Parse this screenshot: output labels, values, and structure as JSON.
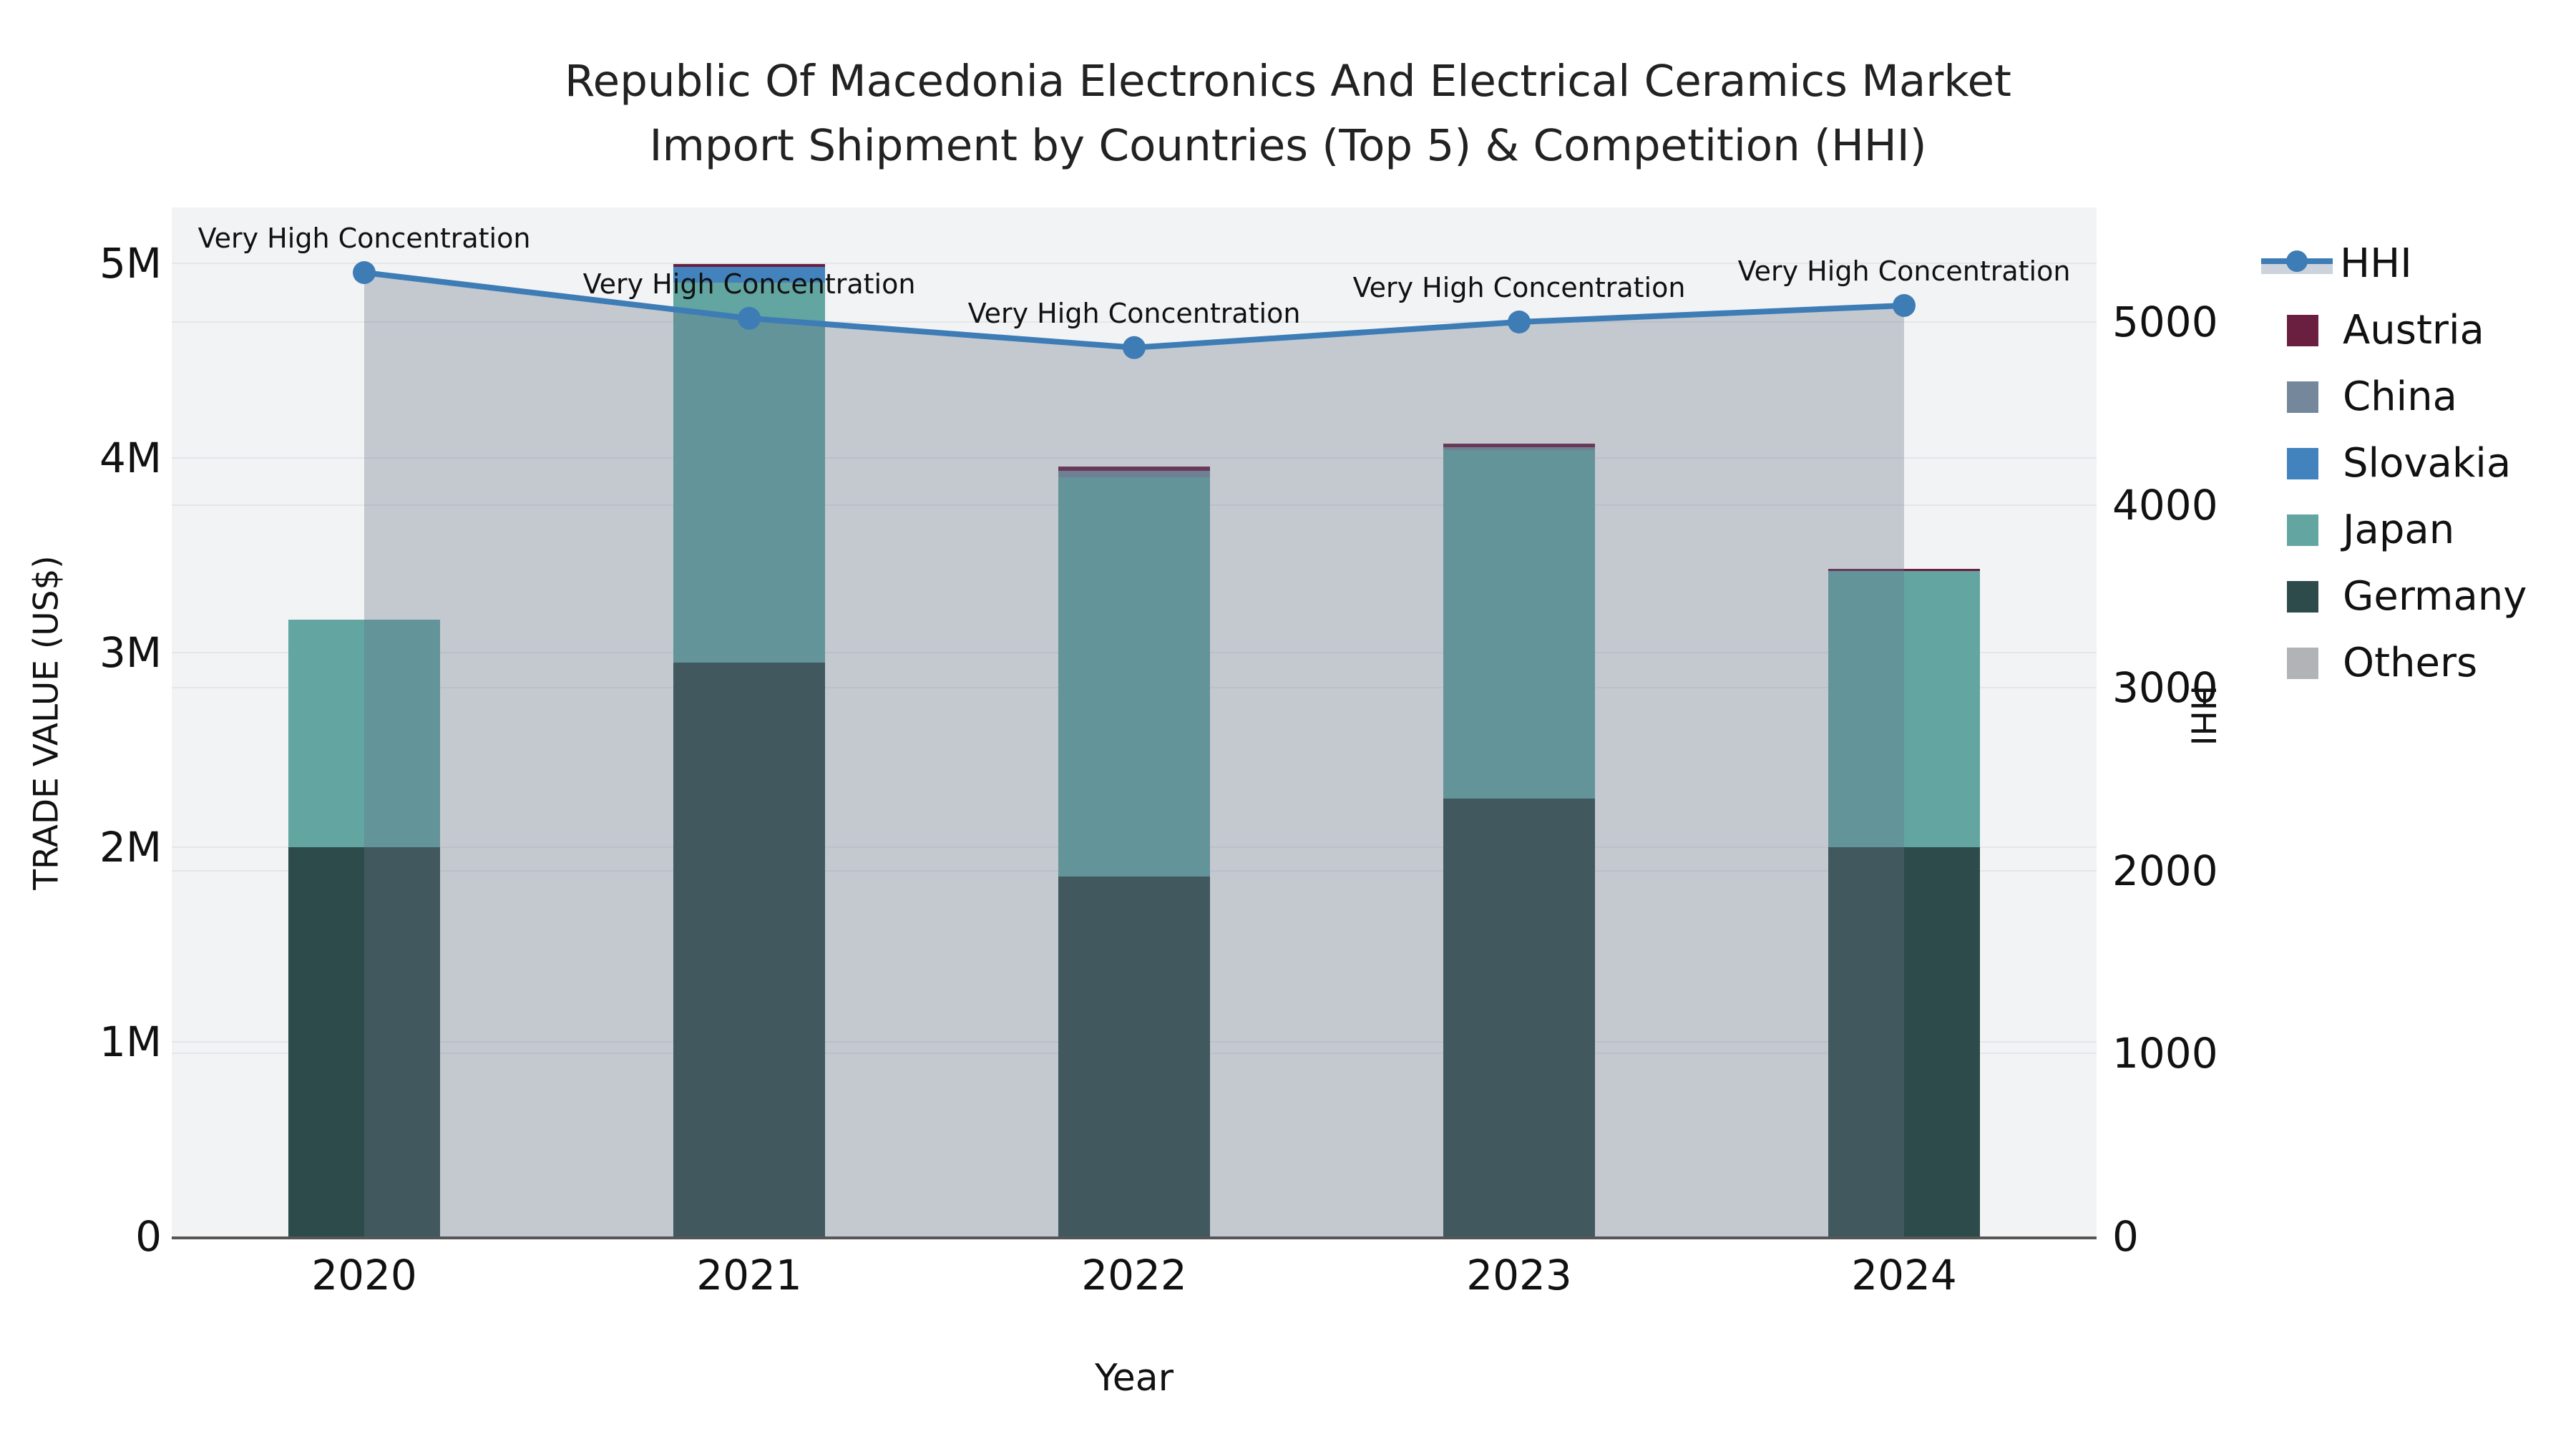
{
  "title": {
    "line1": "Republic Of Macedonia Electronics And Electrical Ceramics Market",
    "line2": "Import Shipment by Countries (Top 5) & Competition (HHI)"
  },
  "axes": {
    "y_left": {
      "title": "TRADE VALUE (US$)",
      "tick_labels": [
        "0",
        "1M",
        "2M",
        "3M",
        "4M",
        "5M"
      ],
      "tick_values": [
        0,
        1000000,
        2000000,
        3000000,
        4000000,
        5000000
      ],
      "range": [
        0,
        5290000
      ]
    },
    "y_right": {
      "title": "HHI",
      "tick_labels": [
        "0",
        "1000",
        "2000",
        "3000",
        "4000",
        "5000"
      ],
      "tick_values": [
        0,
        1000,
        2000,
        3000,
        4000,
        5000
      ],
      "range": [
        0,
        5625
      ]
    },
    "x": {
      "title": "Year",
      "tick_labels": [
        "2020",
        "2021",
        "2022",
        "2023",
        "2024"
      ]
    }
  },
  "colors": {
    "plot_bg": "#f2f3f4",
    "grid": "#e4e6e9",
    "axis_line": "#565656",
    "hhi_line": "#3e7cb6",
    "hhi_area_fill": "rgba(104,115,136,0.33)",
    "legend_band": "#ccd3dc",
    "austria": "#6b1f40",
    "china": "#75879a",
    "slovakia": "#4283be",
    "japan": "#62a5a1",
    "germany": "#2d4b4a",
    "others": "#b1b3b6"
  },
  "legend": {
    "items": [
      {
        "label": "HHI",
        "type": "line",
        "color": "#3e7cb6"
      },
      {
        "label": "Austria",
        "type": "swatch",
        "color": "#6b1f40"
      },
      {
        "label": "China",
        "type": "swatch",
        "color": "#75879a"
      },
      {
        "label": "Slovakia",
        "type": "swatch",
        "color": "#4283be"
      },
      {
        "label": "Japan",
        "type": "swatch",
        "color": "#62a5a1"
      },
      {
        "label": "Germany",
        "type": "swatch",
        "color": "#2d4b4a"
      },
      {
        "label": "Others",
        "type": "swatch",
        "color": "#b1b3b6"
      }
    ]
  },
  "chart_data": {
    "type": "bar",
    "subtype": "stacked-bars-with-line",
    "title": "Republic Of Macedonia Electronics And Electrical Ceramics Market Import Shipment by Countries (Top 5) & Competition (HHI)",
    "xlabel": "Year",
    "ylabel_left": "TRADE VALUE (US$)",
    "ylabel_right": "HHI",
    "categories": [
      "2020",
      "2021",
      "2022",
      "2023",
      "2024"
    ],
    "stack_order_bottom_to_top": [
      "Germany",
      "Japan",
      "Slovakia",
      "China",
      "Austria",
      "Others"
    ],
    "series": [
      {
        "name": "Germany",
        "axis": "left",
        "color": "#2d4b4a",
        "values": [
          2000000,
          2950000,
          1850000,
          2250000,
          2000000
        ]
      },
      {
        "name": "Japan",
        "axis": "left",
        "color": "#62a5a1",
        "values": [
          1170000,
          1950000,
          2050000,
          1790000,
          1420000
        ]
      },
      {
        "name": "Slovakia",
        "axis": "left",
        "color": "#4283be",
        "values": [
          0,
          80000,
          0,
          0,
          0
        ]
      },
      {
        "name": "China",
        "axis": "left",
        "color": "#75879a",
        "values": [
          0,
          0,
          35000,
          15000,
          0
        ]
      },
      {
        "name": "Austria",
        "axis": "left",
        "color": "#6b1f40",
        "values": [
          0,
          15000,
          20000,
          20000,
          10000
        ]
      },
      {
        "name": "Others",
        "axis": "left",
        "color": "#b1b3b6",
        "values": [
          0,
          0,
          0,
          0,
          0
        ]
      }
    ],
    "totals_left_axis": [
      3170000,
      4995000,
      3955000,
      4075000,
      3430000
    ],
    "line_series": {
      "name": "HHI",
      "axis": "right",
      "color": "#3e7cb6",
      "area_fill": "rgba(104,115,136,0.33)",
      "values": [
        5270,
        5020,
        4860,
        5000,
        5090
      ]
    },
    "annotations": [
      {
        "text": "Very High Concentration",
        "category": "2020"
      },
      {
        "text": "Very High Concentration",
        "category": "2021"
      },
      {
        "text": "Very High Concentration",
        "category": "2022"
      },
      {
        "text": "Very High Concentration",
        "category": "2023"
      },
      {
        "text": "Very High Concentration",
        "category": "2024"
      }
    ],
    "grid": true,
    "legend_position": "right"
  }
}
